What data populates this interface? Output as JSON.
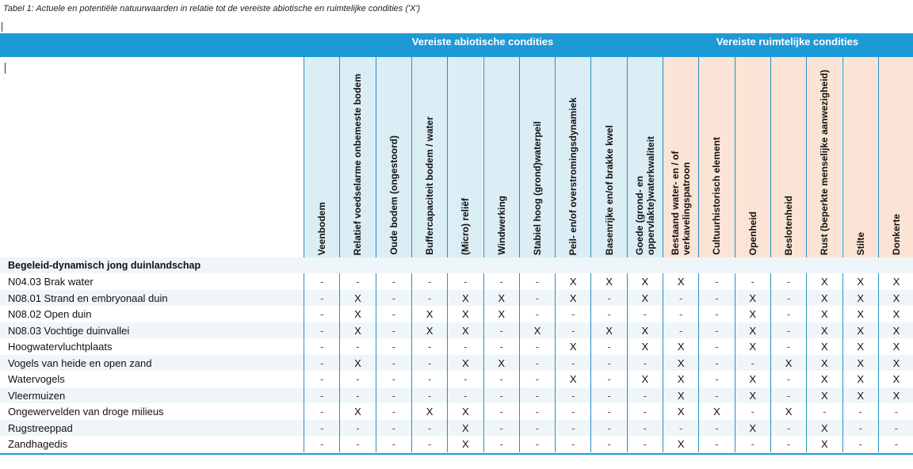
{
  "caption": "Tabel 1: Actuele en potentiële natuurwaarden in relatie tot de vereiste abiotische en ruimtelijke condities ('X')",
  "groups": {
    "abiotic": "Vereiste abiotische condities",
    "spatial": "Vereiste ruimtelijke condities"
  },
  "columns": [
    "Veenbodem",
    "Relatief voedselarme onbemeste bodem",
    "Oude bodem (ongestoord)",
    "Buffercapaciteit bodem / water",
    "(Micro) reliëf",
    "Windwerking",
    "Stabiel hoog (grond)waterpeil",
    "Peil- en/of overstromingsdynamiek",
    "Basenrijke en/of brakke kwel",
    "Goede (grond- en oppervlakte)waterkwaliteit",
    "Bestaand water- en / of verkavelingspatroon",
    "Cultuurhistorisch element",
    "Openheid",
    "Beslotenheid",
    "Rust (beperkte menselijke aanwezigheid)",
    "Stilte",
    "Donkerte"
  ],
  "section_title": "Begeleid-dynamisch jong duinlandschap",
  "rows": [
    {
      "label": "N04.03 Brak water",
      "values": [
        "-",
        "-",
        "-",
        "-",
        "-",
        "-",
        "-",
        "X",
        "X",
        "X",
        "X",
        "-",
        "-",
        "-",
        "X",
        "X",
        "X"
      ]
    },
    {
      "label": "N08.01 Strand en embryonaal duin",
      "values": [
        "-",
        "X",
        "-",
        "-",
        "X",
        "X",
        "-",
        "X",
        "-",
        "X",
        "-",
        "-",
        "X",
        "-",
        "X",
        "X",
        "X"
      ]
    },
    {
      "label": "N08.02 Open duin",
      "values": [
        "-",
        "X",
        "-",
        "X",
        "X",
        "X",
        "-",
        "-",
        "-",
        "-",
        "-",
        "-",
        "X",
        "-",
        "X",
        "X",
        "X"
      ]
    },
    {
      "label": "N08.03 Vochtige duinvallei",
      "values": [
        "-",
        "X",
        "-",
        "X",
        "X",
        "-",
        "X",
        "-",
        "X",
        "X",
        "-",
        "-",
        "X",
        "-",
        "X",
        "X",
        "X"
      ]
    },
    {
      "label": "Hoogwatervluchtplaats",
      "values": [
        "-",
        "-",
        "-",
        "-",
        "-",
        "-",
        "-",
        "X",
        "-",
        "X",
        "X",
        "-",
        "X",
        "-",
        "X",
        "X",
        "X"
      ]
    },
    {
      "label": "Vogels van heide en open zand",
      "values": [
        "-",
        "X",
        "-",
        "-",
        "X",
        "X",
        "-",
        "-",
        "-",
        "-",
        "X",
        "-",
        "-",
        "X",
        "X",
        "X",
        "X"
      ]
    },
    {
      "label": "Watervogels",
      "values": [
        "-",
        "-",
        "-",
        "-",
        "-",
        "-",
        "-",
        "X",
        "-",
        "X",
        "X",
        "-",
        "X",
        "-",
        "X",
        "X",
        "X"
      ]
    },
    {
      "label": "Vleermuizen",
      "values": [
        "-",
        "-",
        "-",
        "-",
        "-",
        "-",
        "-",
        "-",
        "-",
        "-",
        "X",
        "-",
        "X",
        "-",
        "X",
        "X",
        "X"
      ]
    },
    {
      "label": "Ongewervelden van droge milieus",
      "values": [
        "-",
        "X",
        "-",
        "X",
        "X",
        "-",
        "-",
        "-",
        "-",
        "-",
        "X",
        "X",
        "-",
        "X",
        "-",
        "-",
        "-"
      ]
    },
    {
      "label": "Rugstreeppad",
      "values": [
        "-",
        "-",
        "-",
        "-",
        "X",
        "-",
        "-",
        "-",
        "-",
        "-",
        "-",
        "-",
        "X",
        "-",
        "X",
        "-",
        "-"
      ]
    },
    {
      "label": "Zandhagedis",
      "values": [
        "-",
        "-",
        "-",
        "-",
        "X",
        "-",
        "-",
        "-",
        "-",
        "-",
        "X",
        "-",
        "-",
        "-",
        "X",
        "-",
        "-"
      ]
    }
  ]
}
